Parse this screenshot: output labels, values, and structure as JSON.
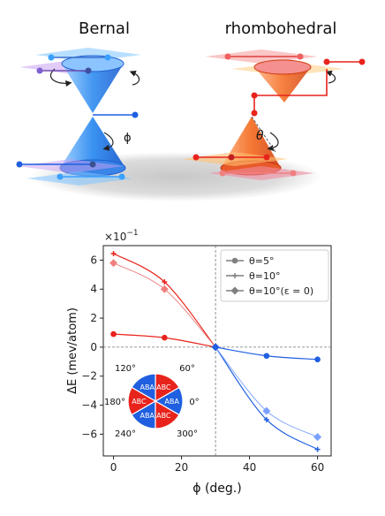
{
  "top_panel": {
    "bernal_title": "Bernal",
    "rhombo_title": "rhombohedral",
    "phi_label": "ϕ",
    "theta_label": "θ"
  },
  "colors": {
    "blue": "#1f5fe0",
    "light_blue": "#7aa0ff",
    "red": "#e8231c",
    "light_red": "#f08080",
    "bernal_cone": "#2f8cf0",
    "rhombo_cone": "#f46a1e",
    "legend_marker": "#7f7f7f"
  },
  "chart_data": {
    "type": "line",
    "y_multiplier": "×10",
    "y_multiplier_exp": "−1",
    "xlabel": "ϕ (deg.)",
    "ylabel": "ΔE (mev/atom)",
    "xlim": [
      -3,
      64
    ],
    "ylim": [
      -7.5,
      7.0
    ],
    "xticks": [
      0,
      20,
      40,
      60
    ],
    "yticks": [
      6,
      4,
      2,
      0,
      -2,
      -4,
      -6
    ],
    "ytick_labels": [
      "6",
      "4",
      "2",
      "0",
      "−2",
      "−4",
      "−6"
    ],
    "reference_lines": {
      "x": 30,
      "y": 0
    },
    "series": [
      {
        "name": "θ=5°",
        "marker": "circle",
        "x": [
          0,
          15,
          30,
          45,
          60
        ],
        "values": [
          0.9,
          0.65,
          0.0,
          -0.6,
          -0.85
        ]
      },
      {
        "name": "θ=10°",
        "marker": "plus",
        "x": [
          0,
          15,
          30,
          45,
          60
        ],
        "values": [
          6.45,
          4.5,
          0.0,
          -5.0,
          -7.05
        ]
      },
      {
        "name": "θ=10°(ε = 0)",
        "marker": "diamond",
        "x": [
          0,
          15,
          30,
          45,
          60
        ],
        "values": [
          5.8,
          4.0,
          0.0,
          -4.4,
          -6.2
        ]
      }
    ],
    "legend_position": "top-right"
  },
  "inset_wheel": {
    "sector_labels": [
      "ABA",
      "ABC",
      "ABA",
      "ABC",
      "ABA",
      "ABC"
    ],
    "angle_labels": [
      "0°",
      "60°",
      "120°",
      "180°",
      "240°",
      "300°"
    ]
  }
}
